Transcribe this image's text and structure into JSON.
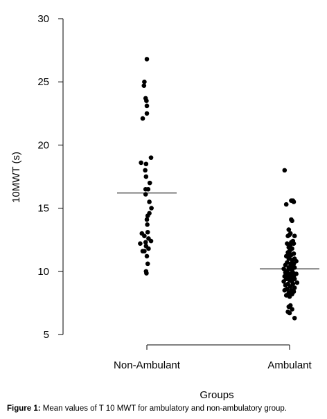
{
  "chart_data": {
    "type": "scatter",
    "ylabel": "10MWT (s)",
    "xlabel": "Groups",
    "ylim": [
      5,
      30
    ],
    "yticks": [
      5,
      10,
      15,
      20,
      25,
      30
    ],
    "categories": [
      "Non-Ambulant",
      "Ambulant"
    ],
    "series": [
      {
        "category": "Non-Ambulant",
        "mean": 16.2,
        "points": [
          {
            "offset": 0.0,
            "value": 26.8
          },
          {
            "offset": -0.3,
            "value": 25.0
          },
          {
            "offset": -0.35,
            "value": 24.7
          },
          {
            "offset": -0.15,
            "value": 23.7
          },
          {
            "offset": -0.05,
            "value": 23.5
          },
          {
            "offset": 0.0,
            "value": 23.1
          },
          {
            "offset": 0.0,
            "value": 22.5
          },
          {
            "offset": -0.5,
            "value": 22.1
          },
          {
            "offset": 0.5,
            "value": 19.0
          },
          {
            "offset": -0.7,
            "value": 18.6
          },
          {
            "offset": -0.1,
            "value": 18.5
          },
          {
            "offset": -0.2,
            "value": 18.0
          },
          {
            "offset": -0.1,
            "value": 17.5
          },
          {
            "offset": 0.35,
            "value": 17.0
          },
          {
            "offset": -0.15,
            "value": 16.5
          },
          {
            "offset": 0.15,
            "value": 16.5
          },
          {
            "offset": -0.15,
            "value": 16.1
          },
          {
            "offset": 0.3,
            "value": 15.5
          },
          {
            "offset": 0.55,
            "value": 15.0
          },
          {
            "offset": 0.3,
            "value": 14.6
          },
          {
            "offset": 0.1,
            "value": 14.4
          },
          {
            "offset": 0.0,
            "value": 14.1
          },
          {
            "offset": 0.05,
            "value": 13.7
          },
          {
            "offset": -0.6,
            "value": 13.0
          },
          {
            "offset": 0.1,
            "value": 13.1
          },
          {
            "offset": -0.3,
            "value": 12.8
          },
          {
            "offset": 0.2,
            "value": 12.6
          },
          {
            "offset": 0.5,
            "value": 12.4
          },
          {
            "offset": -0.15,
            "value": 12.3
          },
          {
            "offset": -0.8,
            "value": 12.2
          },
          {
            "offset": -0.1,
            "value": 12.0
          },
          {
            "offset": 0.2,
            "value": 11.8
          },
          {
            "offset": -0.5,
            "value": 11.6
          },
          {
            "offset": -0.3,
            "value": 11.6
          },
          {
            "offset": 0.0,
            "value": 11.2
          },
          {
            "offset": 0.1,
            "value": 10.6
          },
          {
            "offset": -0.1,
            "value": 10.0
          },
          {
            "offset": -0.05,
            "value": 9.85
          }
        ]
      },
      {
        "category": "Ambulant",
        "mean": 10.2,
        "points": [
          {
            "offset": -0.6,
            "value": 18.0
          },
          {
            "offset": 0.4,
            "value": 15.6
          },
          {
            "offset": 0.5,
            "value": 15.5
          },
          {
            "offset": -0.4,
            "value": 15.3
          },
          {
            "offset": 0.2,
            "value": 15.6
          },
          {
            "offset": 0.2,
            "value": 14.1
          },
          {
            "offset": 0.3,
            "value": 14.0
          },
          {
            "offset": -0.1,
            "value": 13.3
          },
          {
            "offset": 0.1,
            "value": 13.0
          },
          {
            "offset": -0.2,
            "value": 12.8
          },
          {
            "offset": 0.0,
            "value": 12.9
          },
          {
            "offset": 0.6,
            "value": 12.8
          },
          {
            "offset": 0.4,
            "value": 12.4
          },
          {
            "offset": 0.2,
            "value": 12.3
          },
          {
            "offset": -0.3,
            "value": 12.2
          },
          {
            "offset": 0.1,
            "value": 12.1
          },
          {
            "offset": 0.5,
            "value": 12.2
          },
          {
            "offset": -0.1,
            "value": 11.9
          },
          {
            "offset": 0.3,
            "value": 11.8
          },
          {
            "offset": 0.0,
            "value": 11.6
          },
          {
            "offset": -0.2,
            "value": 11.5
          },
          {
            "offset": 0.5,
            "value": 11.4
          },
          {
            "offset": 0.2,
            "value": 11.3
          },
          {
            "offset": -0.4,
            "value": 11.2
          },
          {
            "offset": 0.0,
            "value": 11.2
          },
          {
            "offset": 0.6,
            "value": 11.0
          },
          {
            "offset": -0.1,
            "value": 11.0
          },
          {
            "offset": 0.3,
            "value": 10.9
          },
          {
            "offset": 0.8,
            "value": 10.8
          },
          {
            "offset": -0.3,
            "value": 10.7
          },
          {
            "offset": 0.1,
            "value": 10.6
          },
          {
            "offset": 0.5,
            "value": 10.6
          },
          {
            "offset": -0.5,
            "value": 10.5
          },
          {
            "offset": 0.2,
            "value": 10.4
          },
          {
            "offset": -0.1,
            "value": 10.3
          },
          {
            "offset": 0.6,
            "value": 10.3
          },
          {
            "offset": 0.0,
            "value": 10.2
          },
          {
            "offset": -0.7,
            "value": 10.2
          },
          {
            "offset": 0.3,
            "value": 10.1
          },
          {
            "offset": -0.3,
            "value": 10.0
          },
          {
            "offset": 0.4,
            "value": 9.9
          },
          {
            "offset": -0.5,
            "value": 9.9
          },
          {
            "offset": 0.1,
            "value": 9.8
          },
          {
            "offset": 0.8,
            "value": 9.8
          },
          {
            "offset": -0.2,
            "value": 9.7
          },
          {
            "offset": 0.5,
            "value": 9.6
          },
          {
            "offset": -0.6,
            "value": 9.6
          },
          {
            "offset": 0.2,
            "value": 9.5
          },
          {
            "offset": -0.1,
            "value": 9.5
          },
          {
            "offset": 0.6,
            "value": 9.4
          },
          {
            "offset": -0.4,
            "value": 9.4
          },
          {
            "offset": 0.0,
            "value": 9.3
          },
          {
            "offset": 0.3,
            "value": 9.2
          },
          {
            "offset": -0.7,
            "value": 9.2
          },
          {
            "offset": 0.9,
            "value": 9.1
          },
          {
            "offset": -0.2,
            "value": 9.0
          },
          {
            "offset": 0.4,
            "value": 9.0
          },
          {
            "offset": -0.5,
            "value": 8.9
          },
          {
            "offset": 0.1,
            "value": 8.8
          },
          {
            "offset": 0.6,
            "value": 8.7
          },
          {
            "offset": -0.3,
            "value": 8.6
          },
          {
            "offset": 0.2,
            "value": 8.5
          },
          {
            "offset": -0.6,
            "value": 8.5
          },
          {
            "offset": 0.5,
            "value": 8.4
          },
          {
            "offset": -0.1,
            "value": 8.3
          },
          {
            "offset": 0.3,
            "value": 8.2
          },
          {
            "offset": 0.0,
            "value": 8.0
          },
          {
            "offset": -0.4,
            "value": 8.1
          },
          {
            "offset": 0.1,
            "value": 7.3
          },
          {
            "offset": -0.1,
            "value": 7.2
          },
          {
            "offset": 0.3,
            "value": 7.0
          },
          {
            "offset": -0.2,
            "value": 6.8
          },
          {
            "offset": 0.0,
            "value": 6.7
          },
          {
            "offset": 0.6,
            "value": 6.3
          }
        ]
      }
    ]
  },
  "caption": {
    "label": "Figure 1:",
    "text": " Mean values of T 10 MWT for ambulatory and non-ambulatory group."
  }
}
